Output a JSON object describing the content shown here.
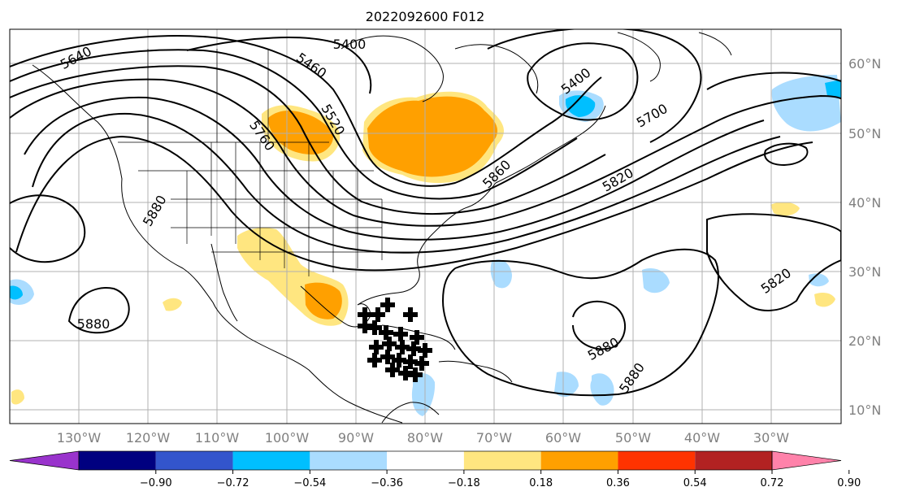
{
  "title": "2022092600 F012",
  "map": {
    "lon_range": [
      -140,
      -18
    ],
    "lat_range": [
      8,
      65
    ],
    "lon_labels": [
      "130°W",
      "120°W",
      "110°W",
      "100°W",
      "90°W",
      "80°W",
      "70°W",
      "60°W",
      "50°W",
      "40°W",
      "30°W"
    ],
    "lat_labels": [
      "10°N",
      "20°N",
      "30°N",
      "40°N",
      "50°N",
      "60°N"
    ],
    "gridlines": true,
    "contour_color": "#000000",
    "contour_labels": [
      "5400",
      "5460",
      "5520",
      "5640",
      "5760",
      "5880",
      "5400",
      "5700",
      "5860",
      "5820",
      "5880",
      "5880",
      "5880",
      "5820"
    ],
    "tropical_cyclone_marker": "black-cross-cluster",
    "anomaly_palette": [
      "#9933cc",
      "#000080",
      "#3355cc",
      "#00bfff",
      "#aadcff",
      "#ffffff",
      "#ffe680",
      "#ffa000",
      "#ff3300",
      "#b22222",
      "#ff82aa"
    ]
  },
  "colorbar": {
    "ticks": [
      "−0.90",
      "−0.72",
      "−0.54",
      "−0.36",
      "−0.18",
      "0.18",
      "0.36",
      "0.54",
      "0.72",
      "0.90"
    ],
    "colors": [
      "#9933cc",
      "#000080",
      "#3355cc",
      "#00bfff",
      "#aadcff",
      "#ffffff",
      "#ffe680",
      "#ffa000",
      "#ff3300",
      "#b22222",
      "#ff82aa"
    ],
    "extend": "both"
  }
}
